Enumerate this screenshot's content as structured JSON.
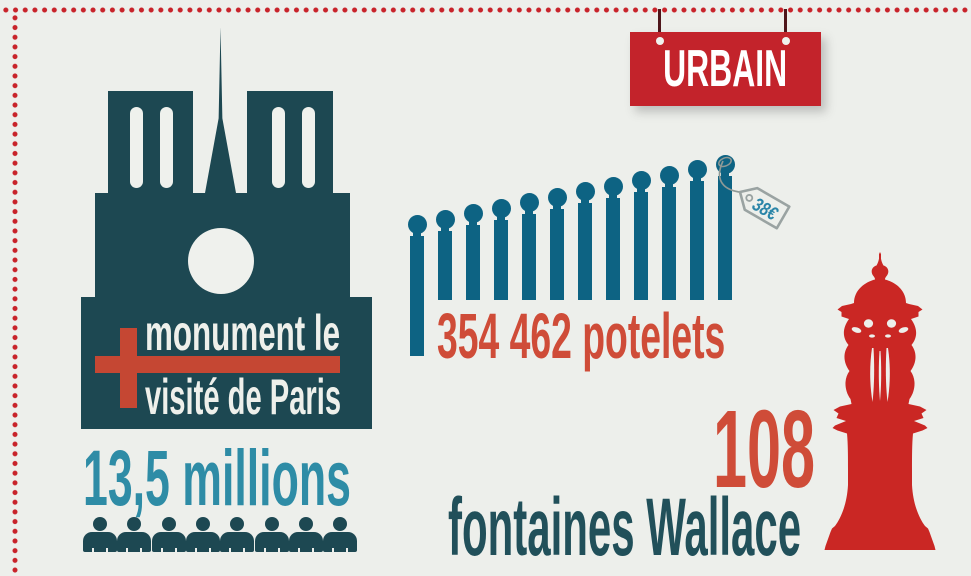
{
  "title_sign": {
    "label": "URBAIN"
  },
  "monument": {
    "superlative_line1": "monument le",
    "superlative_line2": "visité de Paris",
    "plus_symbol": "+",
    "visitors": "13,5 millions",
    "visitor_icons": 8
  },
  "bollards": {
    "count": 12,
    "stat": "354 462 potelets",
    "price": "38€"
  },
  "fountains": {
    "stat_number": "108",
    "stat_label": "fontaines Wallace"
  },
  "colors": {
    "background": "#edefeb",
    "dark_teal": "#1d4852",
    "teal_text": "#2e8ca6",
    "bollard_blue": "#0d6383",
    "sign_red": "#c3232b",
    "fountain_red": "#ca2724",
    "accent_red_orange": "#cf4c38",
    "dot_red": "#c8232a"
  }
}
